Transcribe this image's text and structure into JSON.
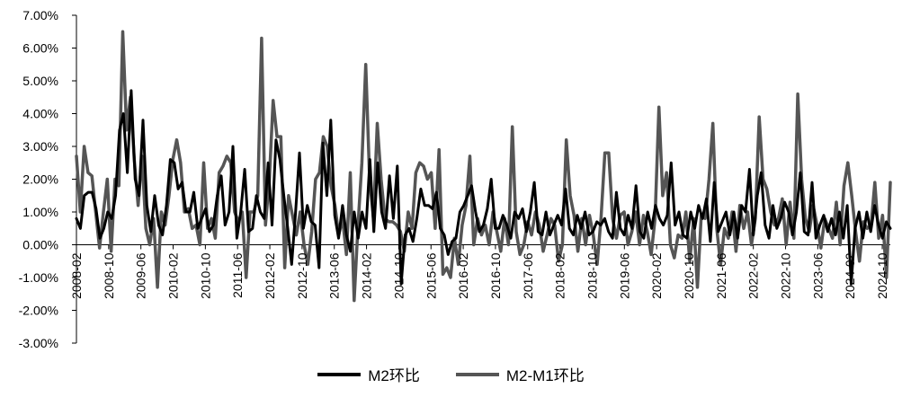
{
  "chart_data": {
    "type": "line",
    "title": "",
    "xlabel": "",
    "ylabel": "",
    "ylim": [
      -3.0,
      7.0
    ],
    "y_ticks": [
      "7.00%",
      "6.00%",
      "5.00%",
      "4.00%",
      "3.00%",
      "2.00%",
      "1.00%",
      "0.00%",
      "-1.00%",
      "-2.00%",
      "-3.00%"
    ],
    "y_tick_values": [
      7,
      6,
      5,
      4,
      3,
      2,
      1,
      0,
      -1,
      -2,
      -3
    ],
    "x_tick_labels": [
      "2008-02",
      "2008-10",
      "2009-06",
      "2010-02",
      "2010-10",
      "2011-06",
      "2012-02",
      "2012-10",
      "2013-06",
      "2014-02",
      "2014-10",
      "2015-06",
      "2016-02",
      "2016-10",
      "2017-06",
      "2018-02",
      "2018-10",
      "2019-06",
      "2020-02",
      "2020-10",
      "2021-06",
      "2022-02",
      "2022-10",
      "2023-06",
      "2024-02",
      "2024-10"
    ],
    "x_start": "2008-02",
    "x_end": "2024-12",
    "grid": false,
    "legend_position": "bottom-center",
    "series": [
      {
        "name": "M2环比",
        "color": "#000000",
        "values": [
          0.8,
          0.5,
          1.5,
          1.6,
          1.6,
          1.1,
          0.2,
          0.5,
          1.0,
          0.8,
          1.5,
          3.5,
          4.0,
          2.2,
          4.7,
          2.0,
          1.5,
          3.8,
          1.2,
          0.4,
          1.5,
          0.6,
          0.3,
          1.2,
          2.6,
          2.5,
          1.7,
          1.9,
          1.0,
          1.0,
          1.6,
          0.5,
          0.8,
          1.1,
          0.4,
          0.6,
          1.5,
          2.1,
          0.6,
          1.0,
          3.0,
          0.2,
          1.0,
          2.3,
          0.4,
          0.5,
          1.5,
          1.0,
          0.8,
          2.5,
          0.6,
          3.2,
          2.6,
          1.5,
          0.5,
          -0.6,
          1.0,
          2.8,
          0.5,
          1.2,
          0.7,
          0.6,
          -0.7,
          3.1,
          1.5,
          3.8,
          0.9,
          0.2,
          1.2,
          0.3,
          -0.2,
          1.0,
          0.2,
          1.0,
          0.5,
          2.6,
          0.4,
          2.5,
          1.0,
          0.5,
          2.1,
          0.8,
          2.4,
          -1.2,
          0.3,
          0.5,
          0.1,
          0.8,
          1.7,
          1.2,
          1.2,
          1.1,
          1.6,
          0.5,
          0.3,
          -0.3,
          0.1,
          0.2,
          1.0,
          1.2,
          1.5,
          1.8,
          1.0,
          0.4,
          0.6,
          1.1,
          2.0,
          0.5,
          0.5,
          0.9,
          0.6,
          0.2,
          1.0,
          0.8,
          1.1,
          0.4,
          1.0,
          1.9,
          0.4,
          0.3,
          1.0,
          0.3,
          0.6,
          0.9,
          0.6,
          1.7,
          0.5,
          0.3,
          0.9,
          0.5,
          1.0,
          0.3,
          0.4,
          0.7,
          0.6,
          0.8,
          0.4,
          0.2,
          1.6,
          0.5,
          0.3,
          0.9,
          0.5,
          1.8,
          0.4,
          0.2,
          1.0,
          0.5,
          1.2,
          0.8,
          0.6,
          0.9,
          2.5,
          0.6,
          1.0,
          0.3,
          0.2,
          1.0,
          0.5,
          1.2,
          0.8,
          1.4,
          0.1,
          1.9,
          0.4,
          0.7,
          1.0,
          0.3,
          1.0,
          0.2,
          1.2,
          1.0,
          2.3,
          0.3,
          1.5,
          2.2,
          0.6,
          0.2,
          1.2,
          0.5,
          0.8,
          1.3,
          1.0,
          0.3,
          1.0,
          2.2,
          0.4,
          0.3,
          1.9,
          0.2,
          0.6,
          0.9,
          0.4,
          0.8,
          0.3,
          1.0,
          0.2,
          1.2,
          -1.2,
          0.5,
          1.0,
          0.2,
          1.0,
          0.4,
          1.2,
          0.6,
          0.2,
          0.7,
          0.5
        ]
      },
      {
        "name": "M2-M1环比",
        "color": "#555555",
        "values": [
          2.7,
          1.0,
          3.0,
          2.2,
          2.1,
          1.0,
          -0.1,
          1.0,
          2.0,
          -0.2,
          2.0,
          1.8,
          6.5,
          3.5,
          4.5,
          2.6,
          1.2,
          2.7,
          0.5,
          0.0,
          0.8,
          -1.3,
          1.0,
          0.6,
          1.5,
          2.6,
          3.2,
          2.5,
          1.0,
          1.1,
          0.5,
          0.6,
          0.0,
          2.5,
          0.5,
          0.8,
          0.2,
          2.2,
          2.4,
          2.7,
          2.5,
          1.0,
          0.7,
          1.0,
          -1.0,
          1.0,
          1.0,
          1.5,
          6.3,
          0.6,
          2.0,
          4.4,
          3.3,
          3.3,
          -0.7,
          1.5,
          0.9,
          0.3,
          1.0,
          0.0,
          -0.6,
          0.4,
          2.0,
          2.2,
          3.3,
          3.0,
          1.8,
          1.2,
          0.3,
          0.8,
          -0.3,
          2.2,
          -1.7,
          0.6,
          2.5,
          5.5,
          2.0,
          0.8,
          3.7,
          2.0,
          0.8,
          0.7,
          0.7,
          0.6,
          0.4,
          -0.2,
          1.0,
          0.5,
          2.2,
          2.5,
          2.4,
          2.0,
          2.2,
          0.5,
          2.9,
          -0.9,
          -0.7,
          -1.0,
          0.2,
          -0.6,
          0.6,
          1.2,
          2.7,
          0.0,
          0.8,
          0.3,
          0.6,
          0.0,
          1.0,
          0.4,
          -0.2,
          0.8,
          0.0,
          3.6,
          0.4,
          -0.3,
          0.0,
          0.7,
          0.3,
          1.0,
          0.6,
          -0.2,
          0.3,
          0.8,
          0.6,
          -0.5,
          0.0,
          3.2,
          1.5,
          0.9,
          -0.2,
          0.8,
          0.0,
          0.9,
          0.3,
          -0.6,
          0.8,
          2.8,
          2.8,
          0.8,
          0.2,
          0.9,
          1.0,
          0.0,
          0.4,
          1.0,
          0.0,
          0.9,
          0.4,
          -0.3,
          0.8,
          4.2,
          1.5,
          2.2,
          0.0,
          -0.4,
          0.3,
          0.2,
          1.0,
          -0.5,
          0.8,
          -1.3,
          0.9,
          0.8,
          2.0,
          3.7,
          0.5,
          -0.6,
          0.5,
          0.2,
          1.0,
          -0.2,
          1.2,
          0.5,
          1.0,
          0.0,
          0.8,
          3.9,
          2.0,
          1.7,
          1.0,
          0.6,
          0.8,
          1.4,
          0.0,
          1.3,
          0.2,
          4.6,
          2.0,
          0.8,
          0.4,
          1.2,
          0.6,
          -0.1,
          0.8,
          0.5,
          0.2,
          1.3,
          0.0,
          1.8,
          2.5,
          1.5,
          0.4,
          -0.5,
          0.7,
          0.5,
          0.6,
          1.9,
          0.2,
          0.9,
          -1.0,
          1.9
        ]
      }
    ]
  }
}
